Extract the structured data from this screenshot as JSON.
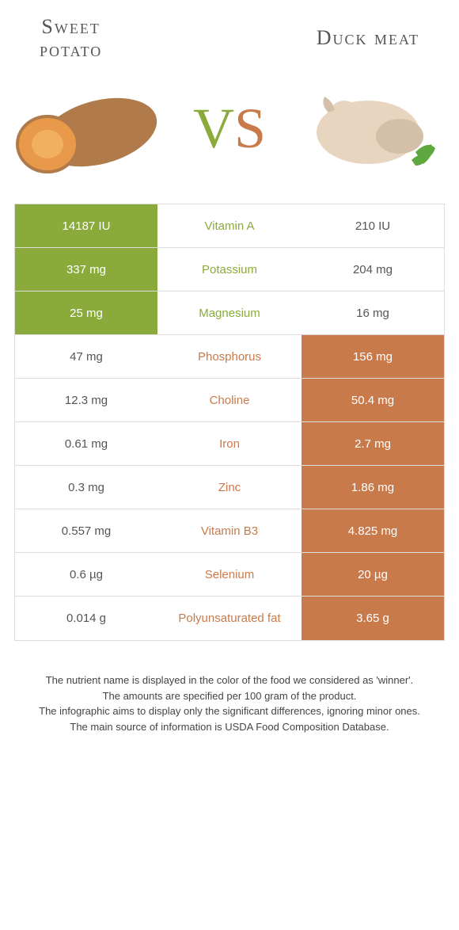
{
  "header": {
    "left_title_l1": "Sweet",
    "left_title_l2": "potato",
    "right_title": "Duck meat",
    "vs_v": "V",
    "vs_s": "S"
  },
  "colors": {
    "green": "#8aab3b",
    "brown": "#c97a4a",
    "border": "#dddddd",
    "text": "#555555"
  },
  "rows": [
    {
      "nutrient": "Vitamin A",
      "left": "14187 IU",
      "right": "210 IU",
      "winner": "left"
    },
    {
      "nutrient": "Potassium",
      "left": "337 mg",
      "right": "204 mg",
      "winner": "left"
    },
    {
      "nutrient": "Magnesium",
      "left": "25 mg",
      "right": "16 mg",
      "winner": "left"
    },
    {
      "nutrient": "Phosphorus",
      "left": "47 mg",
      "right": "156 mg",
      "winner": "right"
    },
    {
      "nutrient": "Choline",
      "left": "12.3 mg",
      "right": "50.4 mg",
      "winner": "right"
    },
    {
      "nutrient": "Iron",
      "left": "0.61 mg",
      "right": "2.7 mg",
      "winner": "right"
    },
    {
      "nutrient": "Zinc",
      "left": "0.3 mg",
      "right": "1.86 mg",
      "winner": "right"
    },
    {
      "nutrient": "Vitamin B3",
      "left": "0.557 mg",
      "right": "4.825 mg",
      "winner": "right"
    },
    {
      "nutrient": "Selenium",
      "left": "0.6 µg",
      "right": "20 µg",
      "winner": "right"
    },
    {
      "nutrient": "Polyunsaturated fat",
      "left": "0.014 g",
      "right": "3.65 g",
      "winner": "right"
    }
  ],
  "footer": {
    "l1": "The nutrient name is displayed in the color of the food we considered as 'winner'.",
    "l2": "The amounts are specified per 100 gram of the product.",
    "l3": "The infographic aims to display only the significant differences, ignoring minor ones.",
    "l4": "The main source of information is USDA Food Composition Database."
  }
}
